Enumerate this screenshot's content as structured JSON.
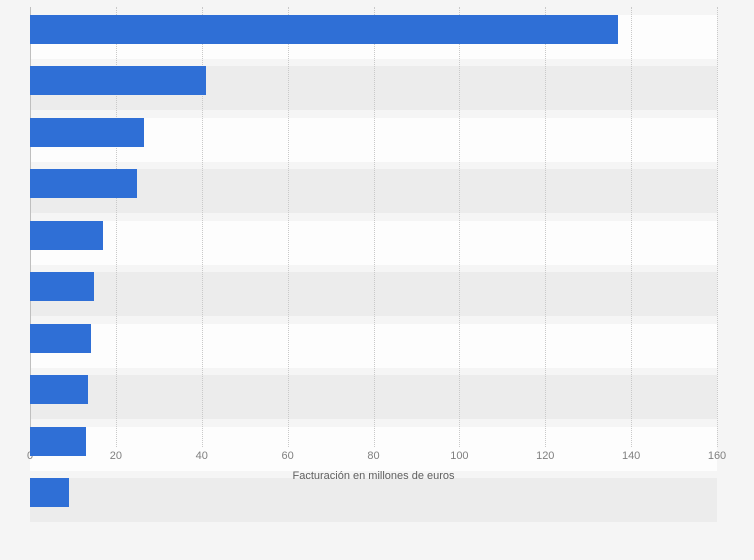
{
  "chart_data": {
    "type": "bar",
    "orientation": "horizontal",
    "title": "",
    "xlabel": "Facturación en millones de euros",
    "ylabel": "",
    "categories": [
      "",
      "",
      "",
      "",
      "",
      "",
      "",
      "",
      "",
      ""
    ],
    "values": [
      137,
      41,
      26.5,
      25,
      17,
      15,
      14.3,
      13.5,
      13,
      9
    ],
    "xlim": [
      0,
      160
    ],
    "x_ticks": [
      0,
      20,
      40,
      60,
      80,
      100,
      120,
      140,
      160
    ],
    "grid": "vertical-dotted",
    "legend": false,
    "bar_color": "#2f6fd6",
    "band_colors": [
      "#fdfdfd",
      "#ececec"
    ],
    "background_color": "#f5f5f5"
  }
}
